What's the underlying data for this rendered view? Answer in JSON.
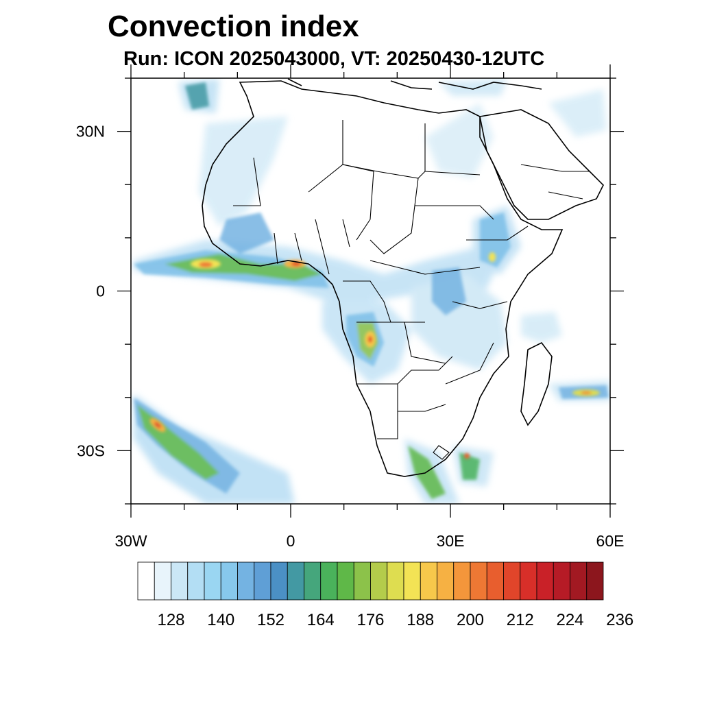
{
  "title": "Convection index",
  "subtitle": "Run: ICON 2025043000,  VT: 20250430-12UTC",
  "map": {
    "lon_range": [
      -30,
      60
    ],
    "lat_range": [
      -40,
      40
    ],
    "lat_ticks": [
      {
        "value": 30,
        "label": "30N"
      },
      {
        "value": 0,
        "label": "0"
      },
      {
        "value": -30,
        "label": "30S"
      }
    ],
    "lon_ticks": [
      {
        "value": -30,
        "label": "30W"
      },
      {
        "value": 0,
        "label": "0"
      },
      {
        "value": 30,
        "label": "30E"
      },
      {
        "value": 60,
        "label": "60E"
      }
    ],
    "minor_tick_step_deg": 10
  },
  "colorbar": {
    "colors": [
      "#ffffff",
      "#e8f4fb",
      "#cbe7f6",
      "#b3def4",
      "#9ad6f2",
      "#87c8ec",
      "#74b3e2",
      "#5f9fd6",
      "#4b90c5",
      "#4399a3",
      "#45a67c",
      "#4ab25b",
      "#5fb848",
      "#8cc24a",
      "#b4cc4b",
      "#dedd50",
      "#f3e355",
      "#f7c84b",
      "#f6b143",
      "#f4963b",
      "#ee7834",
      "#e85e2e",
      "#e1452a",
      "#d82f29",
      "#c92128",
      "#b61b26",
      "#a21922",
      "#8c161d"
    ],
    "tick_labels": [
      "128",
      "140",
      "152",
      "164",
      "176",
      "188",
      "200",
      "212",
      "224",
      "236"
    ]
  }
}
